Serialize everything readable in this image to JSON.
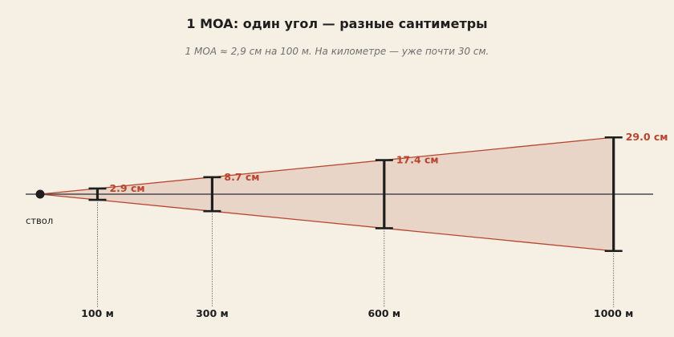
{
  "title": "1 MOA: один угол — разные сантиметры",
  "subtitle": "1 MOA ≈ 2,9 см на 100 м. На километре — уже почти 30 см.",
  "origin_label": "ствол",
  "colors": {
    "background": "#f5efe4",
    "cone_fill": "#e8d5c7",
    "cone_edge": "#b8452e",
    "bar": "#1e1e1e",
    "axis": "#4a4a52",
    "size_label": "#b8452e"
  },
  "markers": [
    {
      "distance_m": 100,
      "distance_label": "100 м",
      "size_cm": 2.9,
      "size_label": "2.9 см"
    },
    {
      "distance_m": 300,
      "distance_label": "300 м",
      "size_cm": 8.7,
      "size_label": "8.7 см"
    },
    {
      "distance_m": 600,
      "distance_label": "600 м",
      "size_cm": 17.4,
      "size_label": "17.4 см"
    },
    {
      "distance_m": 1000,
      "distance_label": "1000 м",
      "size_cm": 29.0,
      "size_label": "29.0 см"
    }
  ]
}
